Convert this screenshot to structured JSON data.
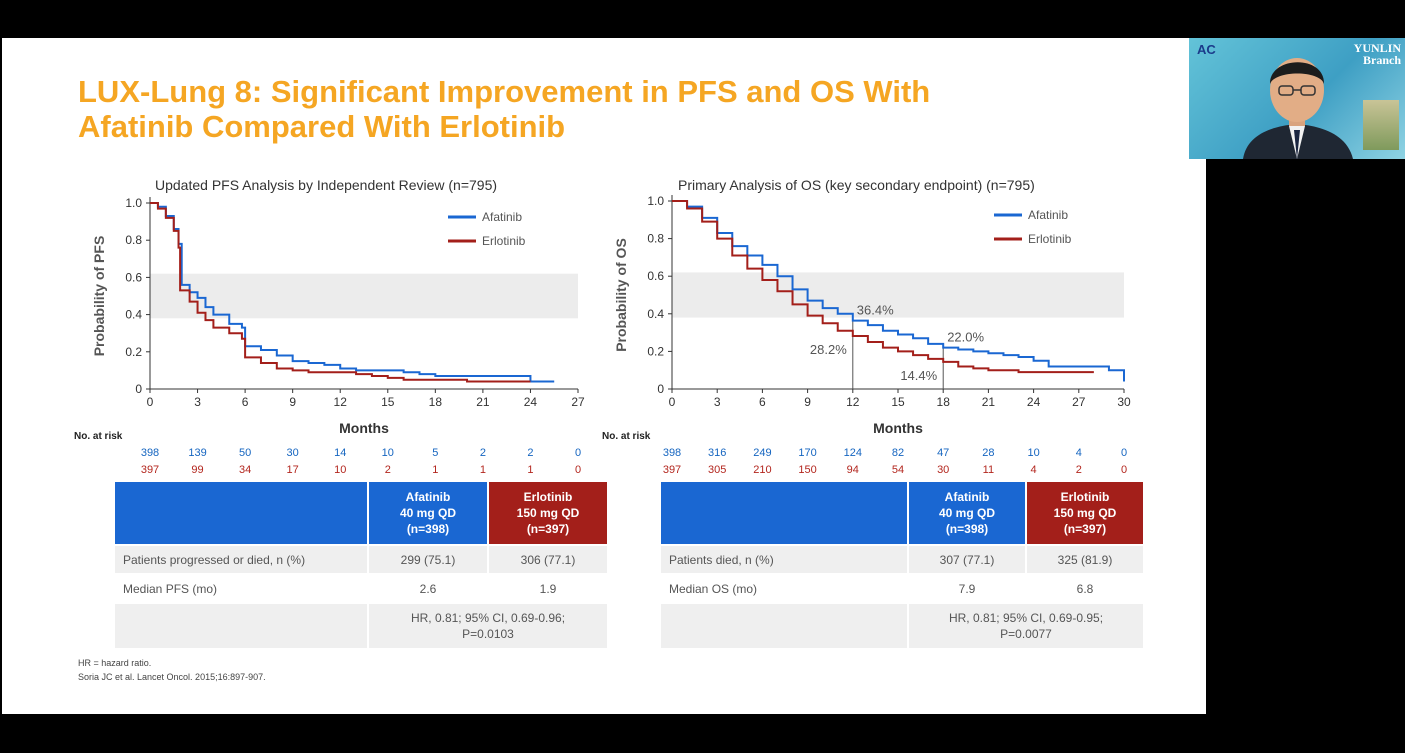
{
  "slide": {
    "title_line1": "LUX-Lung 8: Significant Improvement in PFS and OS With",
    "title_line2": "Afatinib Compared With Erlotinib",
    "footnote1": "HR = hazard ratio.",
    "footnote2": "Soria JC et al. Lancet Oncol. 2015;16:897-907."
  },
  "colors": {
    "title": "#f5a623",
    "afatinib": "#1a67d2",
    "erlotinib": "#a31f1a"
  },
  "chart_data": [
    {
      "type": "line",
      "title": "Updated PFS Analysis by Independent Review (n=795)",
      "xlabel": "Months",
      "ylabel": "Probability of PFS",
      "xlim": [
        0,
        27
      ],
      "ylim": [
        0,
        1.0
      ],
      "xticks": [
        "0",
        "3",
        "6",
        "9",
        "12",
        "15",
        "18",
        "21",
        "24",
        "27"
      ],
      "yticks": [
        "0",
        "0.2",
        "0.4",
        "0.6",
        "0.8",
        "1.0"
      ],
      "legend_position": "top-right",
      "series": [
        {
          "name": "Afatinib",
          "color": "#1a67d2",
          "points": [
            [
              0,
              1.0
            ],
            [
              0.5,
              0.98
            ],
            [
              1.0,
              0.93
            ],
            [
              1.5,
              0.86
            ],
            [
              1.8,
              0.78
            ],
            [
              2.0,
              0.56
            ],
            [
              2.5,
              0.52
            ],
            [
              3.0,
              0.49
            ],
            [
              3.5,
              0.44
            ],
            [
              4.0,
              0.4
            ],
            [
              5.0,
              0.35
            ],
            [
              5.8,
              0.33
            ],
            [
              6.0,
              0.23
            ],
            [
              7.0,
              0.21
            ],
            [
              8.0,
              0.18
            ],
            [
              9.0,
              0.15
            ],
            [
              10.0,
              0.14
            ],
            [
              11.0,
              0.13
            ],
            [
              12.0,
              0.11
            ],
            [
              13.0,
              0.1
            ],
            [
              14.0,
              0.1
            ],
            [
              15.0,
              0.1
            ],
            [
              16.0,
              0.09
            ],
            [
              17.0,
              0.08
            ],
            [
              18.0,
              0.07
            ],
            [
              20.0,
              0.07
            ],
            [
              22.0,
              0.07
            ],
            [
              23.5,
              0.07
            ],
            [
              24.0,
              0.04
            ],
            [
              25.5,
              0.04
            ]
          ]
        },
        {
          "name": "Erlotinib",
          "color": "#a31f1a",
          "points": [
            [
              0,
              1.0
            ],
            [
              0.5,
              0.97
            ],
            [
              1.0,
              0.92
            ],
            [
              1.5,
              0.85
            ],
            [
              1.8,
              0.76
            ],
            [
              1.9,
              0.53
            ],
            [
              2.5,
              0.47
            ],
            [
              3.0,
              0.41
            ],
            [
              3.5,
              0.37
            ],
            [
              4.0,
              0.33
            ],
            [
              5.0,
              0.3
            ],
            [
              5.8,
              0.27
            ],
            [
              6.0,
              0.17
            ],
            [
              7.0,
              0.14
            ],
            [
              8.0,
              0.11
            ],
            [
              9.0,
              0.1
            ],
            [
              10.0,
              0.09
            ],
            [
              11.0,
              0.09
            ],
            [
              12.0,
              0.09
            ],
            [
              13.0,
              0.08
            ],
            [
              14.0,
              0.07
            ],
            [
              15.0,
              0.06
            ],
            [
              16.0,
              0.05
            ],
            [
              18.0,
              0.05
            ],
            [
              20.0,
              0.04
            ],
            [
              22.0,
              0.04
            ],
            [
              24.0,
              0.04
            ]
          ]
        }
      ]
    },
    {
      "type": "line",
      "title": "Primary Analysis of OS (key secondary endpoint) (n=795)",
      "xlabel": "Months",
      "ylabel": "Probability of OS",
      "xlim": [
        0,
        30
      ],
      "ylim": [
        0,
        1.0
      ],
      "xticks": [
        "0",
        "3",
        "6",
        "9",
        "12",
        "15",
        "18",
        "21",
        "24",
        "27",
        "30"
      ],
      "yticks": [
        "0",
        "0.2",
        "0.4",
        "0.6",
        "0.8",
        "1.0"
      ],
      "legend_position": "top-right",
      "annotations": [
        {
          "x": 12,
          "y": 0.364,
          "text": "36.4%"
        },
        {
          "x": 12,
          "y": 0.282,
          "text": "28.2%"
        },
        {
          "x": 18,
          "y": 0.22,
          "text": "22.0%"
        },
        {
          "x": 18,
          "y": 0.144,
          "text": "14.4%"
        }
      ],
      "series": [
        {
          "name": "Afatinib",
          "color": "#1a67d2",
          "points": [
            [
              0,
              1.0
            ],
            [
              1,
              0.97
            ],
            [
              2,
              0.91
            ],
            [
              3,
              0.83
            ],
            [
              4,
              0.76
            ],
            [
              5,
              0.71
            ],
            [
              6,
              0.66
            ],
            [
              7,
              0.6
            ],
            [
              8,
              0.53
            ],
            [
              9,
              0.47
            ],
            [
              10,
              0.43
            ],
            [
              11,
              0.4
            ],
            [
              12,
              0.364
            ],
            [
              13,
              0.34
            ],
            [
              14,
              0.31
            ],
            [
              15,
              0.29
            ],
            [
              16,
              0.27
            ],
            [
              17,
              0.24
            ],
            [
              18,
              0.22
            ],
            [
              19,
              0.21
            ],
            [
              20,
              0.2
            ],
            [
              21,
              0.19
            ],
            [
              22,
              0.18
            ],
            [
              23,
              0.17
            ],
            [
              24,
              0.15
            ],
            [
              25,
              0.12
            ],
            [
              26,
              0.12
            ],
            [
              27,
              0.12
            ],
            [
              28,
              0.12
            ],
            [
              29,
              0.1
            ],
            [
              30,
              0.04
            ]
          ]
        },
        {
          "name": "Erlotinib",
          "color": "#a31f1a",
          "points": [
            [
              0,
              1.0
            ],
            [
              1,
              0.96
            ],
            [
              2,
              0.89
            ],
            [
              3,
              0.8
            ],
            [
              4,
              0.71
            ],
            [
              5,
              0.64
            ],
            [
              6,
              0.58
            ],
            [
              7,
              0.52
            ],
            [
              8,
              0.45
            ],
            [
              9,
              0.39
            ],
            [
              10,
              0.35
            ],
            [
              11,
              0.31
            ],
            [
              12,
              0.282
            ],
            [
              13,
              0.25
            ],
            [
              14,
              0.22
            ],
            [
              15,
              0.2
            ],
            [
              16,
              0.18
            ],
            [
              17,
              0.16
            ],
            [
              18,
              0.144
            ],
            [
              19,
              0.12
            ],
            [
              20,
              0.11
            ],
            [
              21,
              0.1
            ],
            [
              22,
              0.1
            ],
            [
              23,
              0.09
            ],
            [
              24,
              0.09
            ],
            [
              25,
              0.09
            ],
            [
              26,
              0.09
            ],
            [
              27,
              0.09
            ],
            [
              28,
              0.09
            ]
          ]
        }
      ]
    }
  ],
  "risk_tables": [
    {
      "label": "No. at risk",
      "afatinib": [
        "398",
        "139",
        "50",
        "30",
        "14",
        "10",
        "5",
        "2",
        "2",
        "0"
      ],
      "erlotinib": [
        "397",
        "99",
        "34",
        "17",
        "10",
        "2",
        "1",
        "1",
        "1",
        "0"
      ]
    },
    {
      "label": "No. at risk",
      "afatinib": [
        "398",
        "316",
        "249",
        "170",
        "124",
        "82",
        "47",
        "28",
        "10",
        "4",
        "0"
      ],
      "erlotinib": [
        "397",
        "305",
        "210",
        "150",
        "94",
        "54",
        "30",
        "11",
        "4",
        "2",
        "0"
      ]
    }
  ],
  "summary_tables": [
    {
      "afatinib_header": [
        "Afatinib",
        "40 mg QD",
        "(n=398)"
      ],
      "erlotinib_header": [
        "Erlotinib",
        "150 mg QD",
        "(n=397)"
      ],
      "row1_label": "Patients progressed or died, n (%)",
      "row1_afatinib": "299 (75.1)",
      "row1_erlotinib": "306 (77.1)",
      "row2_label": "Median PFS (mo)",
      "row2_afatinib": "2.6",
      "row2_erlotinib": "1.9",
      "hr_line1": "HR, 0.81; 95% CI, 0.69-0.96;",
      "hr_line2": "P=0.0103"
    },
    {
      "afatinib_header": [
        "Afatinib",
        "40 mg QD",
        "(n=398)"
      ],
      "erlotinib_header": [
        "Erlotinib",
        "150 mg QD",
        "(n=397)"
      ],
      "row1_label": "Patients died, n (%)",
      "row1_afatinib": "307 (77.1)",
      "row1_erlotinib": "325 (81.9)",
      "row2_label": "Median OS (mo)",
      "row2_afatinib": "7.9",
      "row2_erlotinib": "6.8",
      "hr_line1": "HR, 0.81; 95% CI, 0.69-0.95;",
      "hr_line2": "P=0.0077"
    }
  ],
  "webcam": {
    "logo_text": "AC",
    "banner_line1": "YUNLIN",
    "banner_line2": "Branch"
  }
}
